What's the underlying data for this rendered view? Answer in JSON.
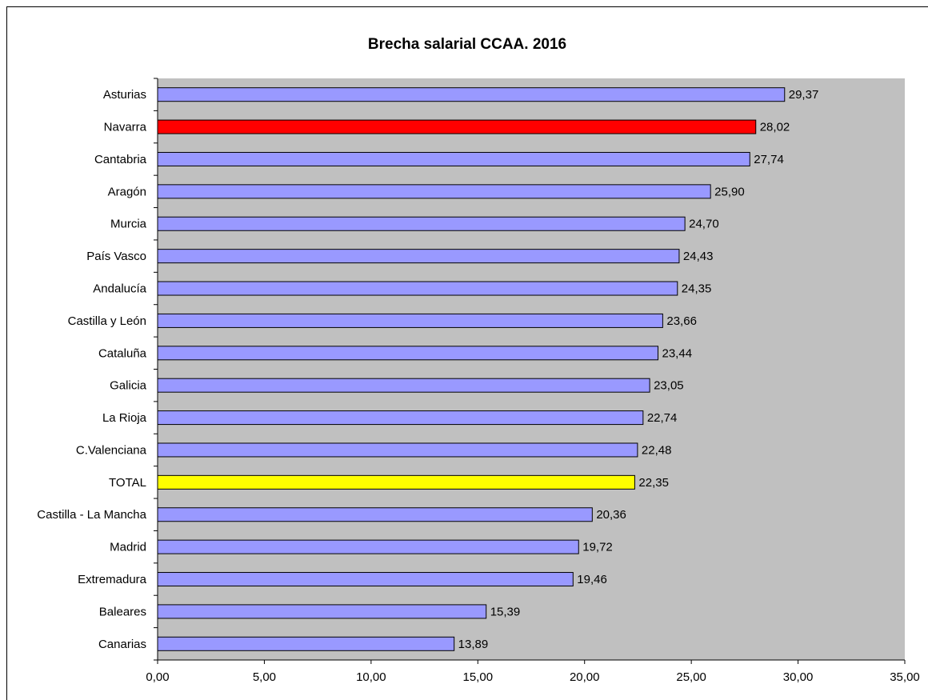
{
  "chart_data": {
    "type": "bar",
    "orientation": "horizontal",
    "title": "Brecha salarial CCAA. 2016",
    "categories": [
      "Asturias",
      "Navarra",
      "Cantabria",
      "Aragón",
      "Murcia",
      "País Vasco",
      "Andalucía",
      "Castilla y León",
      "Cataluña",
      "Galicia",
      "La Rioja",
      "C.Valenciana",
      "TOTAL",
      "Castilla - La Mancha",
      "Madrid",
      "Extremadura",
      "Baleares",
      "Canarias"
    ],
    "values": [
      29.37,
      28.02,
      27.74,
      25.9,
      24.7,
      24.43,
      24.35,
      23.66,
      23.44,
      23.05,
      22.74,
      22.48,
      22.35,
      20.36,
      19.72,
      19.46,
      15.39,
      13.89
    ],
    "value_labels": [
      "29,37",
      "28,02",
      "27,74",
      "25,90",
      "24,70",
      "24,43",
      "24,35",
      "23,66",
      "23,44",
      "23,05",
      "22,74",
      "22,48",
      "22,35",
      "20,36",
      "19,72",
      "19,46",
      "15,39",
      "13,89"
    ],
    "colors": [
      "#9999ff",
      "#ff0000",
      "#9999ff",
      "#9999ff",
      "#9999ff",
      "#9999ff",
      "#9999ff",
      "#9999ff",
      "#9999ff",
      "#9999ff",
      "#9999ff",
      "#9999ff",
      "#ffff00",
      "#9999ff",
      "#9999ff",
      "#9999ff",
      "#9999ff",
      "#9999ff"
    ],
    "xlim": [
      0,
      35
    ],
    "xticks": [
      {
        "value": 0,
        "label": "0,00"
      },
      {
        "value": 5,
        "label": "5,00"
      },
      {
        "value": 10,
        "label": "10,00"
      },
      {
        "value": 15,
        "label": "15,00"
      },
      {
        "value": 20,
        "label": "20,00"
      },
      {
        "value": 25,
        "label": "25,00"
      },
      {
        "value": 30,
        "label": "30,00"
      },
      {
        "value": 35,
        "label": "35,00"
      }
    ],
    "plot_background": "#c0c0c0",
    "grid": false
  }
}
